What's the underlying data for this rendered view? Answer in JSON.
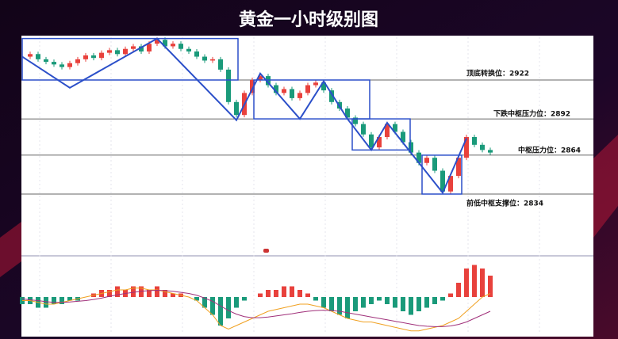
{
  "chart_data": {
    "type": "candlestick",
    "title": "黄金一小时级别图",
    "close": [
      2940,
      2942,
      2938,
      2936,
      2934,
      2932,
      2935,
      2938,
      2941,
      2939,
      2943,
      2945,
      2942,
      2946,
      2948,
      2944,
      2950,
      2953,
      2948,
      2950,
      2946,
      2944,
      2940,
      2937,
      2938,
      2930,
      2905,
      2895,
      2912,
      2922,
      2925,
      2918,
      2912,
      2915,
      2908,
      2912,
      2918,
      2920,
      2914,
      2905,
      2900,
      2893,
      2888,
      2880,
      2870,
      2878,
      2888,
      2882,
      2874,
      2866,
      2858,
      2862,
      2852,
      2836,
      2848,
      2862,
      2878,
      2872,
      2868,
      2866
    ],
    "up_color": "#e8413c",
    "down_color": "#1a9a7a",
    "ylim": [
      2790,
      2955
    ],
    "levels": [
      {
        "value": 2922,
        "label": "顶底转换位：2922"
      },
      {
        "value": 2892,
        "label": "下跌中枢压力位：2892"
      },
      {
        "value": 2864,
        "label": "中枢压力位：2864"
      },
      {
        "value": 2834,
        "label": "前低中枢支撑位：2834"
      }
    ],
    "zigzag": {
      "color": "#2b4fc9",
      "x": [
        0,
        6,
        17,
        27,
        30,
        35,
        38,
        41,
        44,
        46,
        53,
        56
      ],
      "values": [
        2940,
        2916,
        2954,
        2891,
        2927,
        2892,
        2921,
        2892,
        2868,
        2889,
        2835,
        2877
      ]
    },
    "boxes": [
      {
        "x": [
          0,
          27.2
        ],
        "y": [
          2922,
          2954
        ]
      },
      {
        "x": [
          29.2,
          43.8
        ],
        "y": [
          2892,
          2922
        ]
      },
      {
        "x": [
          41.6,
          48.9
        ],
        "y": [
          2868,
          2892
        ]
      },
      {
        "x": [
          50.4,
          55.4
        ],
        "y": [
          2834,
          2864
        ]
      }
    ],
    "macd": {
      "ylim": [
        -10,
        10
      ],
      "hist": [
        -2,
        -2,
        -3,
        -3,
        -2,
        -2,
        -1,
        -1,
        0,
        1,
        2,
        2,
        3,
        2,
        3,
        3,
        2,
        3,
        2,
        1,
        1,
        0,
        -1,
        -3,
        -5,
        -8,
        -6,
        -3,
        -1,
        0,
        1,
        2,
        2,
        3,
        3,
        2,
        1,
        -1,
        -3,
        -4,
        -5,
        -6,
        -4,
        -3,
        -2,
        -1,
        -2,
        -3,
        -4,
        -5,
        -4,
        -3,
        -2,
        -1,
        1,
        4,
        8,
        9,
        8,
        6
      ],
      "dif": [
        -1,
        -1,
        -1.5,
        -2,
        -2,
        -1.5,
        -1,
        -0.5,
        0,
        0.5,
        1,
        1.5,
        2,
        2,
        2.5,
        2.5,
        2,
        2,
        1.5,
        1,
        0.5,
        0,
        -1,
        -3,
        -5,
        -8,
        -9,
        -8,
        -7,
        -6,
        -5,
        -4,
        -3.5,
        -3,
        -2.5,
        -2,
        -2,
        -2.5,
        -3,
        -4,
        -5,
        -6,
        -6.5,
        -7,
        -7,
        -7.5,
        -8,
        -8.5,
        -9,
        -9.5,
        -9.5,
        -9,
        -8.5,
        -8,
        -7,
        -6,
        -4,
        -2,
        0,
        1
      ],
      "dea": [
        -0.5,
        -0.8,
        -1,
        -1.3,
        -1.5,
        -1.5,
        -1.4,
        -1.2,
        -1,
        -0.7,
        -0.3,
        0.2,
        0.6,
        1,
        1.3,
        1.6,
        1.8,
        1.9,
        1.8,
        1.6,
        1.3,
        1,
        0.5,
        -0.3,
        -1.2,
        -2.5,
        -3.8,
        -4.8,
        -5.5,
        -5.8,
        -5.8,
        -5.6,
        -5.3,
        -5,
        -4.7,
        -4.3,
        -4,
        -3.8,
        -3.7,
        -3.8,
        -4,
        -4.4,
        -4.8,
        -5.2,
        -5.6,
        -6,
        -6.4,
        -6.8,
        -7.2,
        -7.6,
        -8,
        -8.2,
        -8.3,
        -8.3,
        -8.1,
        -7.7,
        -7,
        -6,
        -5,
        -4
      ],
      "dif_color": "#f0a020",
      "dea_color": "#a0307a"
    }
  }
}
